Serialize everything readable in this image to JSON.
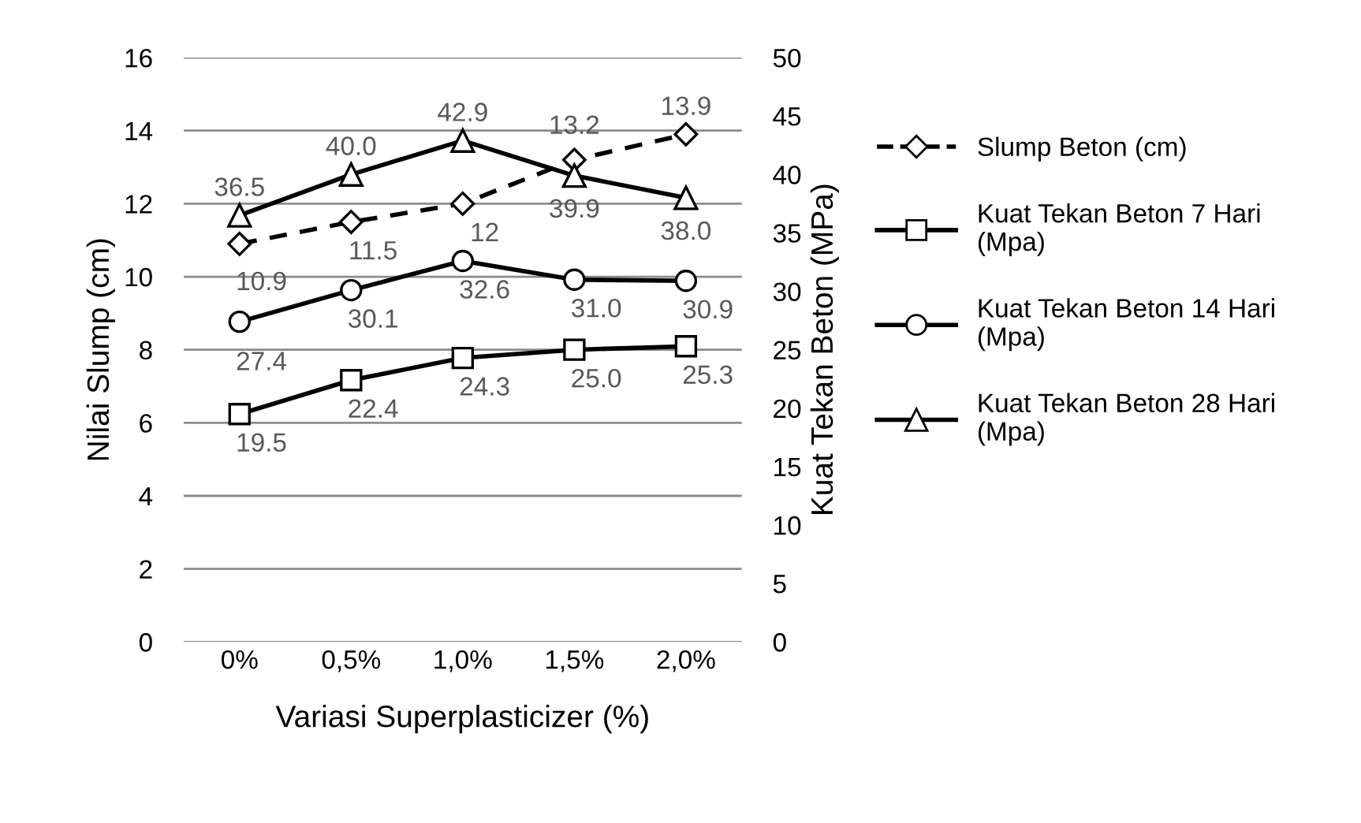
{
  "chart_data": {
    "type": "line",
    "xlabel": "Variasi Superplasticizer (%)",
    "ylabel": "Nilai Slump (cm)",
    "y2label": "Kuat Tekan Beton (MPa)",
    "categories": [
      "0%",
      "0,5%",
      "1,0%",
      "1,5%",
      "2,0%"
    ],
    "ylim": [
      0,
      16
    ],
    "yticks": [
      0,
      2,
      4,
      6,
      8,
      10,
      12,
      14,
      16
    ],
    "y2lim": [
      0,
      50
    ],
    "y2ticks": [
      0,
      5,
      10,
      15,
      20,
      25,
      30,
      35,
      40,
      45,
      50
    ],
    "grid": "y",
    "legend": "right",
    "series": [
      {
        "name": "Slump Beton (cm)",
        "color": "#000000",
        "marker": "diamond",
        "line_style": "dashed",
        "values": [
          10.9,
          11.5,
          12,
          13.2,
          13.9
        ],
        "value_labels": [
          "10.9",
          "11.5",
          "12",
          "13.2",
          "13.9"
        ]
      },
      {
        "name": "Kuat Tekan Beton 7 Hari (Mpa)",
        "color": "#000000",
        "marker": "square",
        "line_style": "solid",
        "axis": "y2",
        "values": [
          19.5,
          22.4,
          24.3,
          25.0,
          25.3
        ],
        "value_labels": [
          "19.5",
          "22.4",
          "24.3",
          "25.0",
          "25.3"
        ]
      },
      {
        "name": "Kuat Tekan Beton 14 Hari (Mpa)",
        "color": "#000000",
        "marker": "circle",
        "line_style": "solid",
        "axis": "y2",
        "values": [
          27.4,
          30.1,
          32.6,
          31.0,
          30.9
        ],
        "value_labels": [
          "27.4",
          "30.1",
          "32.6",
          "31.0",
          "30.9"
        ]
      },
      {
        "name": "Kuat Tekan Beton 28 Hari (Mpa)",
        "color": "#000000",
        "marker": "triangle",
        "line_style": "solid",
        "axis": "y2",
        "values": [
          36.5,
          40.0,
          42.9,
          39.9,
          38.0
        ],
        "value_labels": [
          "36.5",
          "40.0",
          "42.9",
          "39.9",
          "38.0"
        ]
      }
    ]
  }
}
